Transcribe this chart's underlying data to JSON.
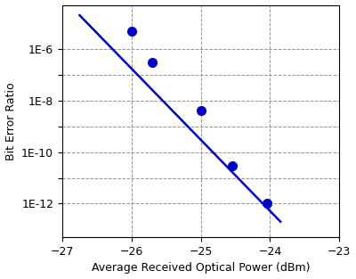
{
  "x_data": [
    -26.0,
    -25.7,
    -25.0,
    -24.55,
    -24.05
  ],
  "y_data": [
    5e-06,
    3e-07,
    4e-09,
    3e-11,
    1e-12
  ],
  "line_x": [
    -26.75,
    -23.85
  ],
  "line_y": [
    2e-05,
    2e-13
  ],
  "point_color": "#0000CC",
  "line_color": "#0000CC",
  "xlim": [
    -27,
    -23
  ],
  "ylim": [
    5e-14,
    5e-05
  ],
  "xlabel": "Average Received Optical Power (dBm)",
  "ylabel": "Bit Error Ratio",
  "yticks": [
    1e-12,
    1e-11,
    1e-10,
    1e-09,
    1e-08,
    1e-07,
    1e-06
  ],
  "ytick_labels_show": [
    1e-12,
    1e-10,
    1e-08,
    1e-06
  ],
  "ytick_labels": [
    "1E-12",
    "1E-10",
    "1E-8",
    "1E-6"
  ],
  "xticks": [
    -27,
    -26,
    -25,
    -24,
    -23
  ],
  "grid_color": "#888888",
  "grid_style": "--",
  "background_color": "#ffffff",
  "marker_size": 7,
  "line_width": 1.8,
  "xlabel_fontsize": 9,
  "ylabel_fontsize": 9,
  "tick_fontsize": 9
}
